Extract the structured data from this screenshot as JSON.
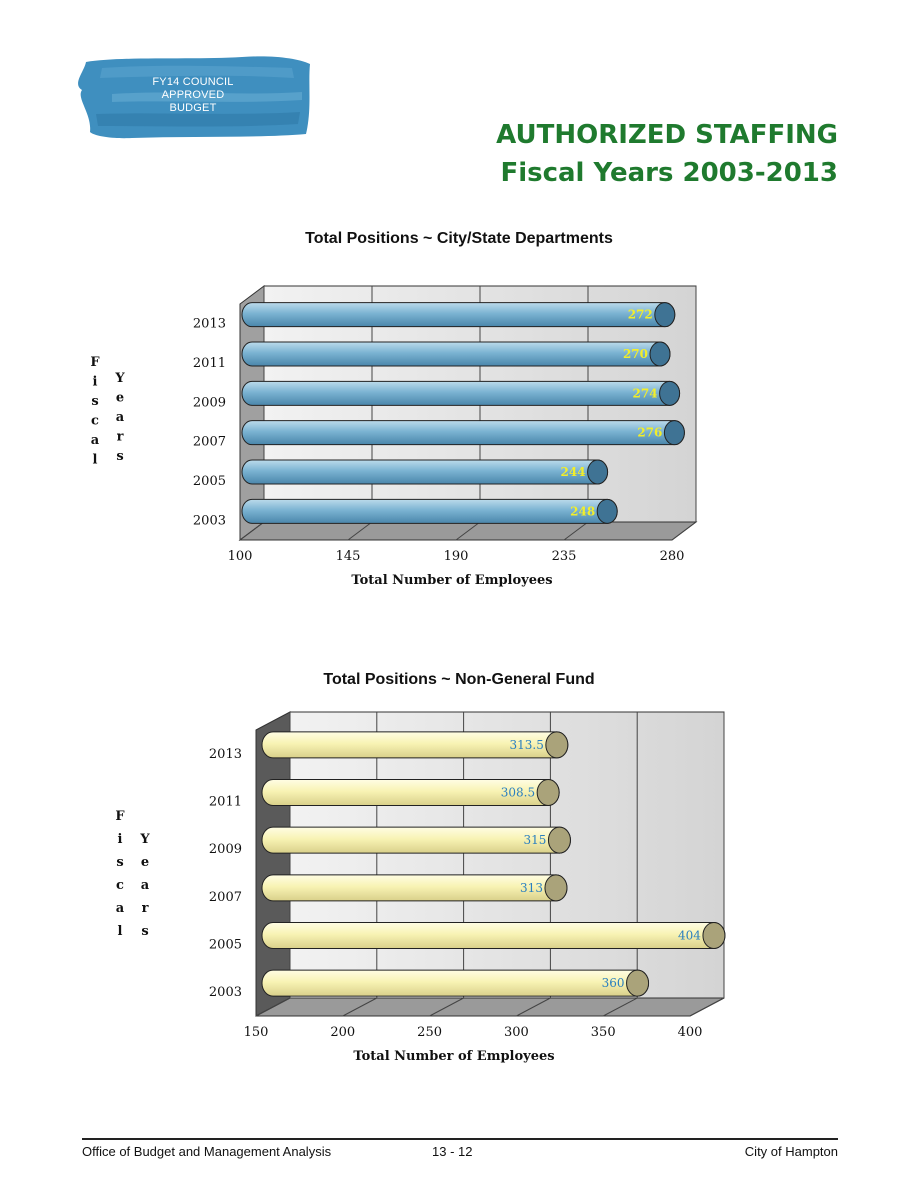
{
  "badge": {
    "line1": "FY14 COUNCIL",
    "line2": "APPROVED",
    "line3": "BUDGET"
  },
  "page_title": {
    "line1": "AUTHORIZED STAFFING",
    "line2": "Fiscal Years 2003-2013"
  },
  "colors": {
    "title_green": "#1f7a2e",
    "bar_blue": "#6aa6c8",
    "bar_cream": "#f7f2b4",
    "label_yellow": "#f2ee2a",
    "label_blue": "#2a7fc0",
    "badge_blue": "#3f8fbf"
  },
  "footer": {
    "left": "Office of Budget and Management Analysis",
    "center": "13 - 12",
    "right": "City of Hampton"
  },
  "chart_data": [
    {
      "type": "bar",
      "orientation": "horizontal",
      "title": "Total Positions ~ City/State Departments",
      "xlabel": "Total Number of Employees",
      "ylabel": "Fiscal Years",
      "xlim": [
        100,
        280
      ],
      "xticks": [
        100,
        145,
        190,
        235,
        280
      ],
      "categories": [
        "2013",
        "2011",
        "2009",
        "2007",
        "2005",
        "2003"
      ],
      "values": [
        272,
        270,
        274,
        276,
        244,
        248
      ],
      "value_labels": [
        "272",
        "270",
        "274",
        "276",
        "244",
        "248"
      ],
      "grid": true
    },
    {
      "type": "bar",
      "orientation": "horizontal",
      "title": "Total Positions ~ Non-General Fund",
      "xlabel": "Total Number of Employees",
      "ylabel": "Fiscal Years",
      "xlim": [
        150,
        400
      ],
      "xticks": [
        150,
        200,
        250,
        300,
        350,
        400
      ],
      "categories": [
        "2013",
        "2011",
        "2009",
        "2007",
        "2005",
        "2003"
      ],
      "values": [
        313.5,
        308.5,
        315,
        313,
        404,
        360
      ],
      "value_labels": [
        "313.5",
        "308.5",
        "315",
        "313",
        "404",
        "360"
      ],
      "grid": true
    }
  ]
}
